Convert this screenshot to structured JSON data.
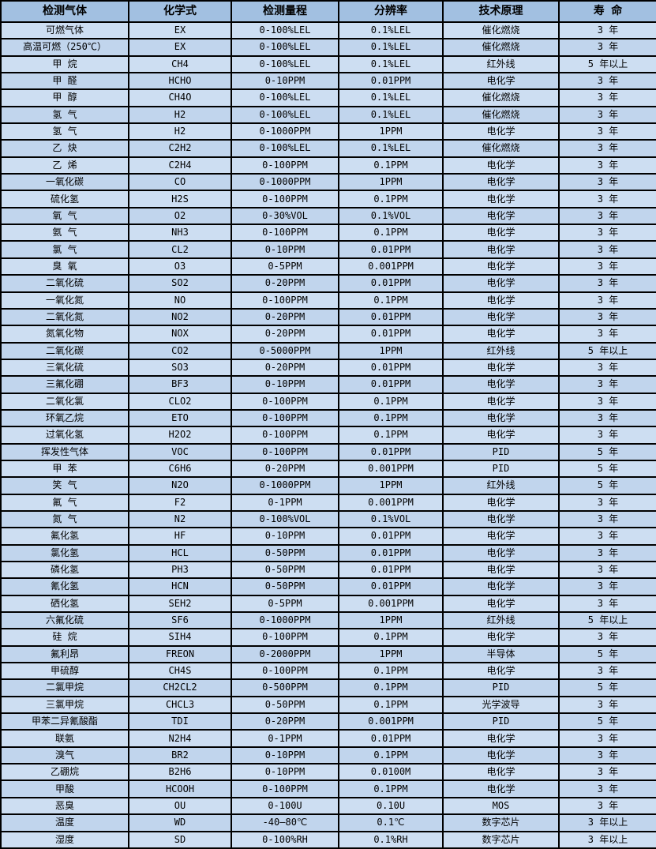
{
  "colors": {
    "header_bg": "#a2c0e1",
    "row_light": "#cddef2",
    "row_dark": "#c1d5ed",
    "border": "#000000"
  },
  "table": {
    "columns": [
      "检测气体",
      "化学式",
      "检测量程",
      "分辨率",
      "技术原理",
      "寿 命"
    ],
    "rows": [
      [
        "可燃气体",
        "EX",
        "0-100%LEL",
        "0.1%LEL",
        "催化燃烧",
        "3 年"
      ],
      [
        "高温可燃（250℃）",
        "EX",
        "0-100%LEL",
        "0.1%LEL",
        "催化燃烧",
        "3 年"
      ],
      [
        "甲 烷",
        "CH4",
        "0-100%LEL",
        "0.1%LEL",
        "红外线",
        "5 年以上"
      ],
      [
        "甲 醛",
        "HCHO",
        "0-10PPM",
        "0.01PPM",
        "电化学",
        "3 年"
      ],
      [
        "甲 醇",
        "CH4O",
        "0-100%LEL",
        "0.1%LEL",
        "催化燃烧",
        "3 年"
      ],
      [
        "氢 气",
        "H2",
        "0-100%LEL",
        "0.1%LEL",
        "催化燃烧",
        "3 年"
      ],
      [
        "氢 气",
        "H2",
        "0-1000PPM",
        "1PPM",
        "电化学",
        "3 年"
      ],
      [
        "乙 炔",
        "C2H2",
        "0-100%LEL",
        "0.1%LEL",
        "催化燃烧",
        "3 年"
      ],
      [
        "乙 烯",
        "C2H4",
        "0-100PPM",
        "0.1PPM",
        "电化学",
        "3 年"
      ],
      [
        "一氧化碳",
        "CO",
        "0-1000PPM",
        "1PPM",
        "电化学",
        "3 年"
      ],
      [
        "硫化氢",
        "H2S",
        "0-100PPM",
        "0.1PPM",
        "电化学",
        "3 年"
      ],
      [
        "氧 气",
        "O2",
        "0-30%VOL",
        "0.1%VOL",
        "电化学",
        "3 年"
      ],
      [
        "氨 气",
        "NH3",
        "0-100PPM",
        "0.1PPM",
        "电化学",
        "3 年"
      ],
      [
        "氯 气",
        "CL2",
        "0-10PPM",
        "0.01PPM",
        "电化学",
        "3 年"
      ],
      [
        "臭 氧",
        "O3",
        "0-5PPM",
        "0.001PPM",
        "电化学",
        "3 年"
      ],
      [
        "二氧化硫",
        "SO2",
        "0-20PPM",
        "0.01PPM",
        "电化学",
        "3 年"
      ],
      [
        "一氧化氮",
        "NO",
        "0-100PPM",
        "0.1PPM",
        "电化学",
        "3 年"
      ],
      [
        "二氧化氮",
        "NO2",
        "0-20PPM",
        "0.01PPM",
        "电化学",
        "3 年"
      ],
      [
        "氮氧化物",
        "NOX",
        "0-20PPM",
        "0.01PPM",
        "电化学",
        "3 年"
      ],
      [
        "二氧化碳",
        "CO2",
        "0-5000PPM",
        "1PPM",
        "红外线",
        "5 年以上"
      ],
      [
        "三氧化硫",
        "SO3",
        "0-20PPM",
        "0.01PPM",
        "电化学",
        "3 年"
      ],
      [
        "三氟化硼",
        "BF3",
        "0-10PPM",
        "0.01PPM",
        "电化学",
        "3 年"
      ],
      [
        "二氧化氯",
        "CLO2",
        "0-100PPM",
        "0.1PPM",
        "电化学",
        "3 年"
      ],
      [
        "环氧乙烷",
        "ETO",
        "0-100PPM",
        "0.1PPM",
        "电化学",
        "3 年"
      ],
      [
        "过氧化氢",
        "H2O2",
        "0-100PPM",
        "0.1PPM",
        "电化学",
        "3 年"
      ],
      [
        "挥发性气体",
        "VOC",
        "0-100PPM",
        "0.01PPM",
        "PID",
        "5 年"
      ],
      [
        "甲 苯",
        "C6H6",
        "0-20PPM",
        "0.001PPM",
        "PID",
        "5 年"
      ],
      [
        "笑 气",
        "N2O",
        "0-1000PPM",
        "1PPM",
        "红外线",
        "5 年"
      ],
      [
        "氟 气",
        "F2",
        "0-1PPM",
        "0.001PPM",
        "电化学",
        "3 年"
      ],
      [
        "氮 气",
        "N2",
        "0-100%VOL",
        "0.1%VOL",
        "电化学",
        "3 年"
      ],
      [
        "氟化氢",
        "HF",
        "0-10PPM",
        "0.01PPM",
        "电化学",
        "3 年"
      ],
      [
        "氯化氢",
        "HCL",
        "0-50PPM",
        "0.01PPM",
        "电化学",
        "3 年"
      ],
      [
        "磷化氢",
        "PH3",
        "0-50PPM",
        "0.01PPM",
        "电化学",
        "3 年"
      ],
      [
        "氰化氢",
        "HCN",
        "0-50PPM",
        "0.01PPM",
        "电化学",
        "3 年"
      ],
      [
        "硒化氢",
        "SEH2",
        "0-5PPM",
        "0.001PPM",
        "电化学",
        "3 年"
      ],
      [
        "六氟化硫",
        "SF6",
        "0-1000PPM",
        "1PPM",
        "红外线",
        "5 年以上"
      ],
      [
        "硅 烷",
        "SIH4",
        "0-100PPM",
        "0.1PPM",
        "电化学",
        "3 年"
      ],
      [
        "氟利昂",
        "FREON",
        "0-2000PPM",
        "1PPM",
        "半导体",
        "5 年"
      ],
      [
        "甲硫醇",
        "CH4S",
        "0-100PPM",
        "0.1PPM",
        "电化学",
        "3 年"
      ],
      [
        "二氯甲烷",
        "CH2CL2",
        "0-500PPM",
        "0.1PPM",
        "PID",
        "5 年"
      ],
      [
        "三氯甲烷",
        "CHCL3",
        "0-50PPM",
        "0.1PPM",
        "光学波导",
        "3 年"
      ],
      [
        "甲苯二异氰酸酯",
        "TDI",
        "0-20PPM",
        "0.001PPM",
        "PID",
        "5 年"
      ],
      [
        "联氨",
        "N2H4",
        "0-1PPM",
        "0.01PPM",
        "电化学",
        "3 年"
      ],
      [
        "溴气",
        "BR2",
        "0-10PPM",
        "0.1PPM",
        "电化学",
        "3 年"
      ],
      [
        "乙硼烷",
        "B2H6",
        "0-10PPM",
        "0.0100M",
        "电化学",
        "3 年"
      ],
      [
        "甲酸",
        "HCOOH",
        "0-100PPM",
        "0.1PPM",
        "电化学",
        "3 年"
      ],
      [
        "恶臭",
        "OU",
        "0-100U",
        "0.10U",
        "MOS",
        "3 年"
      ],
      [
        "温度",
        "WD",
        "-40—80℃",
        "0.1℃",
        "数字芯片",
        "3 年以上"
      ],
      [
        "湿度",
        "SD",
        "0-100%RH",
        "0.1%RH",
        "数字芯片",
        "3 年以上"
      ]
    ]
  }
}
